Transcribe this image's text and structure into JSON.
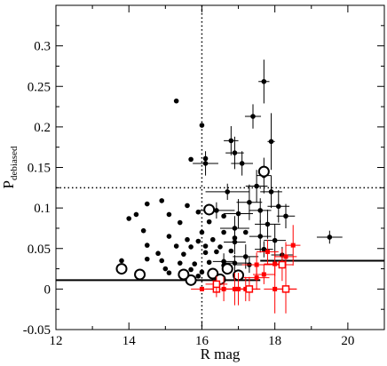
{
  "chart_data": {
    "type": "scatter",
    "xlabel": "R mag",
    "ylabel_main": "P",
    "ylabel_sub": "debiased",
    "xlim": [
      12,
      21
    ],
    "ylim": [
      -0.05,
      0.35
    ],
    "x_ticks": [
      12,
      14,
      16,
      18,
      20
    ],
    "x_tick_labels": [
      "12",
      "14",
      "16",
      "18",
      "20"
    ],
    "y_ticks": [
      -0.05,
      0,
      0.05,
      0.1,
      0.15,
      0.2,
      0.25,
      0.3
    ],
    "y_tick_labels": [
      "-0.05",
      "0",
      "0.05",
      "0.1",
      "0.15",
      "0.2",
      "0.25",
      "0.3"
    ],
    "grid": false,
    "reference_lines": [
      {
        "orientation": "vertical",
        "x": 16.0,
        "style": "dotted"
      },
      {
        "orientation": "horizontal",
        "y": 0.125,
        "style": "dotted"
      },
      {
        "orientation": "segment",
        "x0": 12,
        "y0": 0.011,
        "x1": 17.6,
        "y1": 0.011,
        "style": "solid"
      },
      {
        "orientation": "segment",
        "x0": 17.6,
        "y0": 0.035,
        "x1": 21,
        "y1": 0.035,
        "style": "solid"
      }
    ],
    "colors": {
      "black": "#000000",
      "red": "#ff0000"
    },
    "series": [
      {
        "marker": "filled-circle",
        "color": "#000000",
        "points": [
          [
            15.3,
            0.232,
            0,
            0
          ],
          [
            16.0,
            0.202,
            0,
            0
          ],
          [
            16.1,
            0.161,
            0,
            0
          ],
          [
            15.7,
            0.16,
            0,
            0
          ],
          [
            14.9,
            0.109,
            0,
            0
          ],
          [
            14.5,
            0.105,
            0,
            0
          ],
          [
            15.6,
            0.103,
            0,
            0
          ],
          [
            15.9,
            0.095,
            0,
            0
          ],
          [
            14.2,
            0.092,
            0,
            0
          ],
          [
            15.1,
            0.092,
            0,
            0
          ],
          [
            16.6,
            0.09,
            0,
            0
          ],
          [
            14.0,
            0.087,
            0,
            0
          ],
          [
            14.4,
            0.072,
            0,
            0
          ],
          [
            15.4,
            0.082,
            0,
            0
          ],
          [
            16.2,
            0.083,
            0,
            0
          ],
          [
            16.0,
            0.07,
            0,
            0
          ],
          [
            16.6,
            0.07,
            0,
            0
          ],
          [
            17.2,
            0.07,
            0,
            0
          ],
          [
            15.1,
            0.065,
            0,
            0
          ],
          [
            15.6,
            0.061,
            0,
            0
          ],
          [
            15.9,
            0.059,
            0,
            0
          ],
          [
            16.3,
            0.061,
            0,
            0
          ],
          [
            16.9,
            0.063,
            0,
            0
          ],
          [
            14.5,
            0.054,
            0,
            0
          ],
          [
            15.3,
            0.053,
            0,
            0
          ],
          [
            15.7,
            0.052,
            0,
            0
          ],
          [
            16.1,
            0.053,
            0,
            0
          ],
          [
            16.5,
            0.052,
            0,
            0
          ],
          [
            14.8,
            0.044,
            0,
            0
          ],
          [
            15.5,
            0.043,
            0,
            0
          ],
          [
            16.1,
            0.045,
            0,
            0
          ],
          [
            16.4,
            0.046,
            0,
            0
          ],
          [
            16.8,
            0.047,
            0,
            0
          ],
          [
            14.5,
            0.037,
            0,
            0
          ],
          [
            14.9,
            0.035,
            0,
            0
          ],
          [
            15.4,
            0.032,
            0,
            0
          ],
          [
            15.8,
            0.031,
            0,
            0
          ],
          [
            16.2,
            0.033,
            0,
            0
          ],
          [
            16.6,
            0.029,
            0,
            0
          ],
          [
            13.8,
            0.035,
            0,
            0
          ],
          [
            15.0,
            0.025,
            0,
            0
          ],
          [
            15.7,
            0.024,
            0,
            0
          ],
          [
            16.0,
            0.021,
            0,
            0
          ],
          [
            16.3,
            0.017,
            0,
            0
          ],
          [
            15.1,
            0.02,
            0,
            0
          ],
          [
            15.9,
            0.016,
            0,
            0
          ],
          [
            17.7,
            0.256,
            0.15,
            0.027
          ],
          [
            17.4,
            0.213,
            0.22,
            0.015
          ],
          [
            17.9,
            0.182,
            0.1,
            0.035
          ],
          [
            16.8,
            0.183,
            0.2,
            0.018
          ],
          [
            16.9,
            0.168,
            0.25,
            0.02
          ],
          [
            17.1,
            0.155,
            0.3,
            0.015
          ],
          [
            16.1,
            0.155,
            0.35,
            0.015
          ],
          [
            17.7,
            0.14,
            0.2,
            0.022
          ],
          [
            17.5,
            0.127,
            0.3,
            0.02
          ],
          [
            16.7,
            0.12,
            0.6,
            0.01
          ],
          [
            17.9,
            0.12,
            0.3,
            0.02
          ],
          [
            17.3,
            0.107,
            0.35,
            0.022
          ],
          [
            16.4,
            0.097,
            0.5,
            0.01
          ],
          [
            17.0,
            0.093,
            0.4,
            0.018
          ],
          [
            17.6,
            0.097,
            0.3,
            0.015
          ],
          [
            18.1,
            0.102,
            0.3,
            0.02
          ],
          [
            18.3,
            0.09,
            0.25,
            0.015
          ],
          [
            17.8,
            0.08,
            0.35,
            0.018
          ],
          [
            16.9,
            0.075,
            0.4,
            0.015
          ],
          [
            17.6,
            0.065,
            0.3,
            0.02
          ],
          [
            18.0,
            0.06,
            0.3,
            0.02
          ],
          [
            16.9,
            0.058,
            0.3,
            0.015
          ],
          [
            18.2,
            0.042,
            0.3,
            0.01
          ],
          [
            17.2,
            0.04,
            0.35,
            0.015
          ],
          [
            19.5,
            0.064,
            0.35,
            0.008
          ],
          [
            17.7,
            0.049,
            0.25,
            0.01
          ],
          [
            16.6,
            0.034,
            0.3,
            0.01
          ],
          [
            16.9,
            0.032,
            0.35,
            0.01
          ],
          [
            17.3,
            0.03,
            0.35,
            0.01
          ]
        ]
      },
      {
        "marker": "open-circle",
        "color": "#000000",
        "points": [
          [
            13.8,
            0.025,
            0,
            0
          ],
          [
            14.3,
            0.018,
            0,
            0
          ],
          [
            15.7,
            0.011,
            0,
            0
          ],
          [
            15.5,
            0.018,
            0,
            0
          ],
          [
            16.2,
            0.098,
            0,
            0
          ],
          [
            16.3,
            0.019,
            0,
            0
          ],
          [
            16.5,
            0.012,
            0,
            0
          ],
          [
            16.7,
            0.025,
            0,
            0
          ],
          [
            17.0,
            0.017,
            0,
            0
          ],
          [
            17.7,
            0.145,
            0,
            0
          ]
        ]
      },
      {
        "marker": "filled-square",
        "color": "#ff0000",
        "points": [
          [
            16.0,
            0.0,
            0.3,
            0
          ],
          [
            17.8,
            0.046,
            0.3,
            0.015
          ],
          [
            18.5,
            0.054,
            0.2,
            0.025
          ],
          [
            18.3,
            0.04,
            0.3,
            0.018
          ],
          [
            17.5,
            0.03,
            0.4,
            0.015
          ],
          [
            18.0,
            0.031,
            0.3,
            0.015
          ],
          [
            17.7,
            0.018,
            0.3,
            0.012
          ],
          [
            18.0,
            0.0,
            0.3,
            0.03
          ],
          [
            18.3,
            0.0,
            0.3,
            0.03
          ],
          [
            17.2,
            0.0,
            0.4,
            0.015
          ],
          [
            16.9,
            0.0,
            0.35,
            0.02
          ],
          [
            16.6,
            0.0,
            0.35,
            0.015
          ],
          [
            17.0,
            0.0,
            0.35,
            0.02
          ],
          [
            17.5,
            0.014,
            0.35,
            0.015
          ]
        ]
      },
      {
        "marker": "open-square",
        "color": "#ff0000",
        "points": [
          [
            16.4,
            0.0,
            0.3,
            0.01
          ],
          [
            16.4,
            0.006,
            0.3,
            0.01
          ],
          [
            17.3,
            0.0,
            0.3,
            0.015
          ],
          [
            18.2,
            0.03,
            0.3,
            0.02
          ],
          [
            18.3,
            0.0,
            0.3,
            0.02
          ]
        ]
      }
    ]
  }
}
